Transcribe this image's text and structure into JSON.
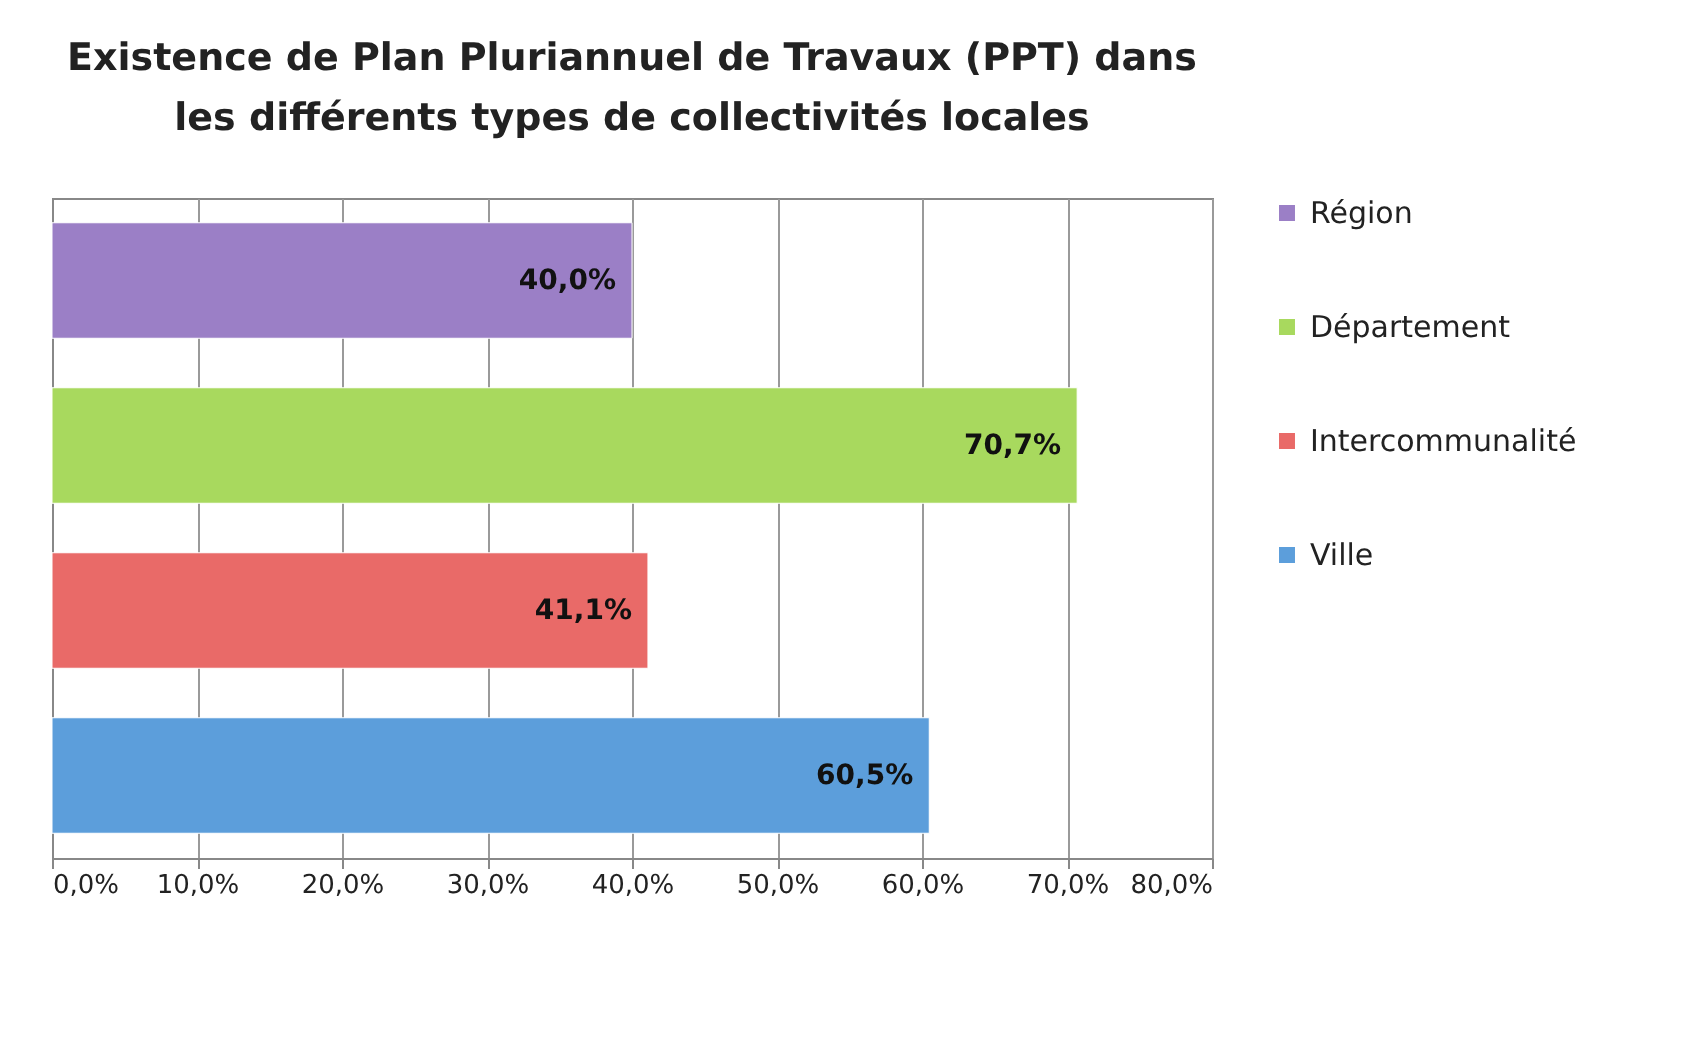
{
  "chart_data": {
    "type": "bar",
    "orientation": "horizontal",
    "title": "Existence de Plan Pluriannuel de Travaux (PPT) dans les différents types de collectivités locales",
    "categories": [
      null,
      null,
      null,
      null
    ],
    "series": [
      {
        "name": "Région",
        "color": "#9b7fc6",
        "values": [
          40.0,
          null,
          null,
          null
        ],
        "value_labels": [
          "40,0%",
          null,
          null,
          null
        ]
      },
      {
        "name": "Département",
        "color": "#a8d95e",
        "values": [
          null,
          70.7,
          null,
          null
        ],
        "value_labels": [
          null,
          "70,7%",
          null,
          null
        ]
      },
      {
        "name": "Intercommunalité",
        "color": "#e96a68",
        "values": [
          null,
          null,
          41.1,
          null
        ],
        "value_labels": [
          null,
          null,
          "41,1%",
          null
        ]
      },
      {
        "name": "Ville",
        "color": "#5c9edb",
        "values": [
          null,
          null,
          null,
          60.5
        ],
        "value_labels": [
          null,
          null,
          null,
          "60,5%"
        ]
      }
    ],
    "xlim": [
      0,
      80
    ],
    "xticks": [
      {
        "value": 0,
        "label": "0,0%"
      },
      {
        "value": 10,
        "label": "10,0%"
      },
      {
        "value": 20,
        "label": "20,0%"
      },
      {
        "value": 30,
        "label": "30,0%"
      },
      {
        "value": 40,
        "label": "40,0%"
      },
      {
        "value": 50,
        "label": "50,0%"
      },
      {
        "value": 60,
        "label": "60,0%"
      },
      {
        "value": 70,
        "label": "70,0%"
      },
      {
        "value": 80,
        "label": "80,0%"
      }
    ],
    "grid": "x",
    "legend": "right"
  }
}
